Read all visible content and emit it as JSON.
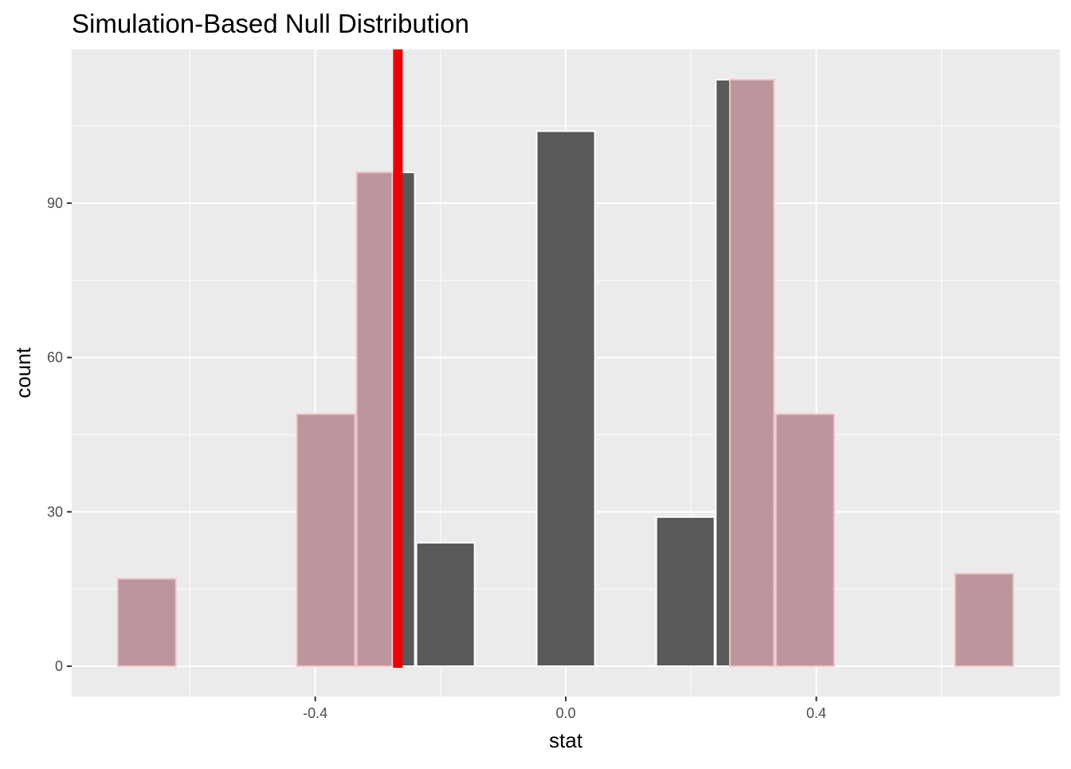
{
  "chart_data": {
    "type": "bar",
    "title": "Simulation-Based Null Distribution",
    "xlabel": "stat",
    "ylabel": "count",
    "xlim": [
      -0.79,
      0.79
    ],
    "ylim": [
      -6,
      120
    ],
    "x_ticks": [
      -0.4,
      0.0,
      0.4
    ],
    "x_tick_labels": [
      "-0.4",
      "0.0",
      "0.4"
    ],
    "y_ticks": [
      0,
      30,
      60,
      90
    ],
    "y_tick_labels": [
      "0",
      "30",
      "60",
      "90"
    ],
    "binwidth": 0.0955,
    "bins": [
      {
        "x": -0.669,
        "count": 17
      },
      {
        "x": -0.383,
        "count": 49
      },
      {
        "x": -0.2875,
        "count": 96
      },
      {
        "x": -0.192,
        "count": 24
      },
      {
        "x": 0.0,
        "count": 104
      },
      {
        "x": 0.191,
        "count": 29
      },
      {
        "x": 0.286,
        "count": 114
      },
      {
        "x": 0.382,
        "count": 49
      },
      {
        "x": 0.668,
        "count": 18
      }
    ],
    "observed_stat": -0.268,
    "shade_direction": "two-sided",
    "grid": true,
    "colors": {
      "bar": "#595959",
      "shade": "#bc969c",
      "shade_border": "#f4c2cb",
      "obs_line": "#ee0000",
      "panel": "#ebebeb"
    }
  }
}
